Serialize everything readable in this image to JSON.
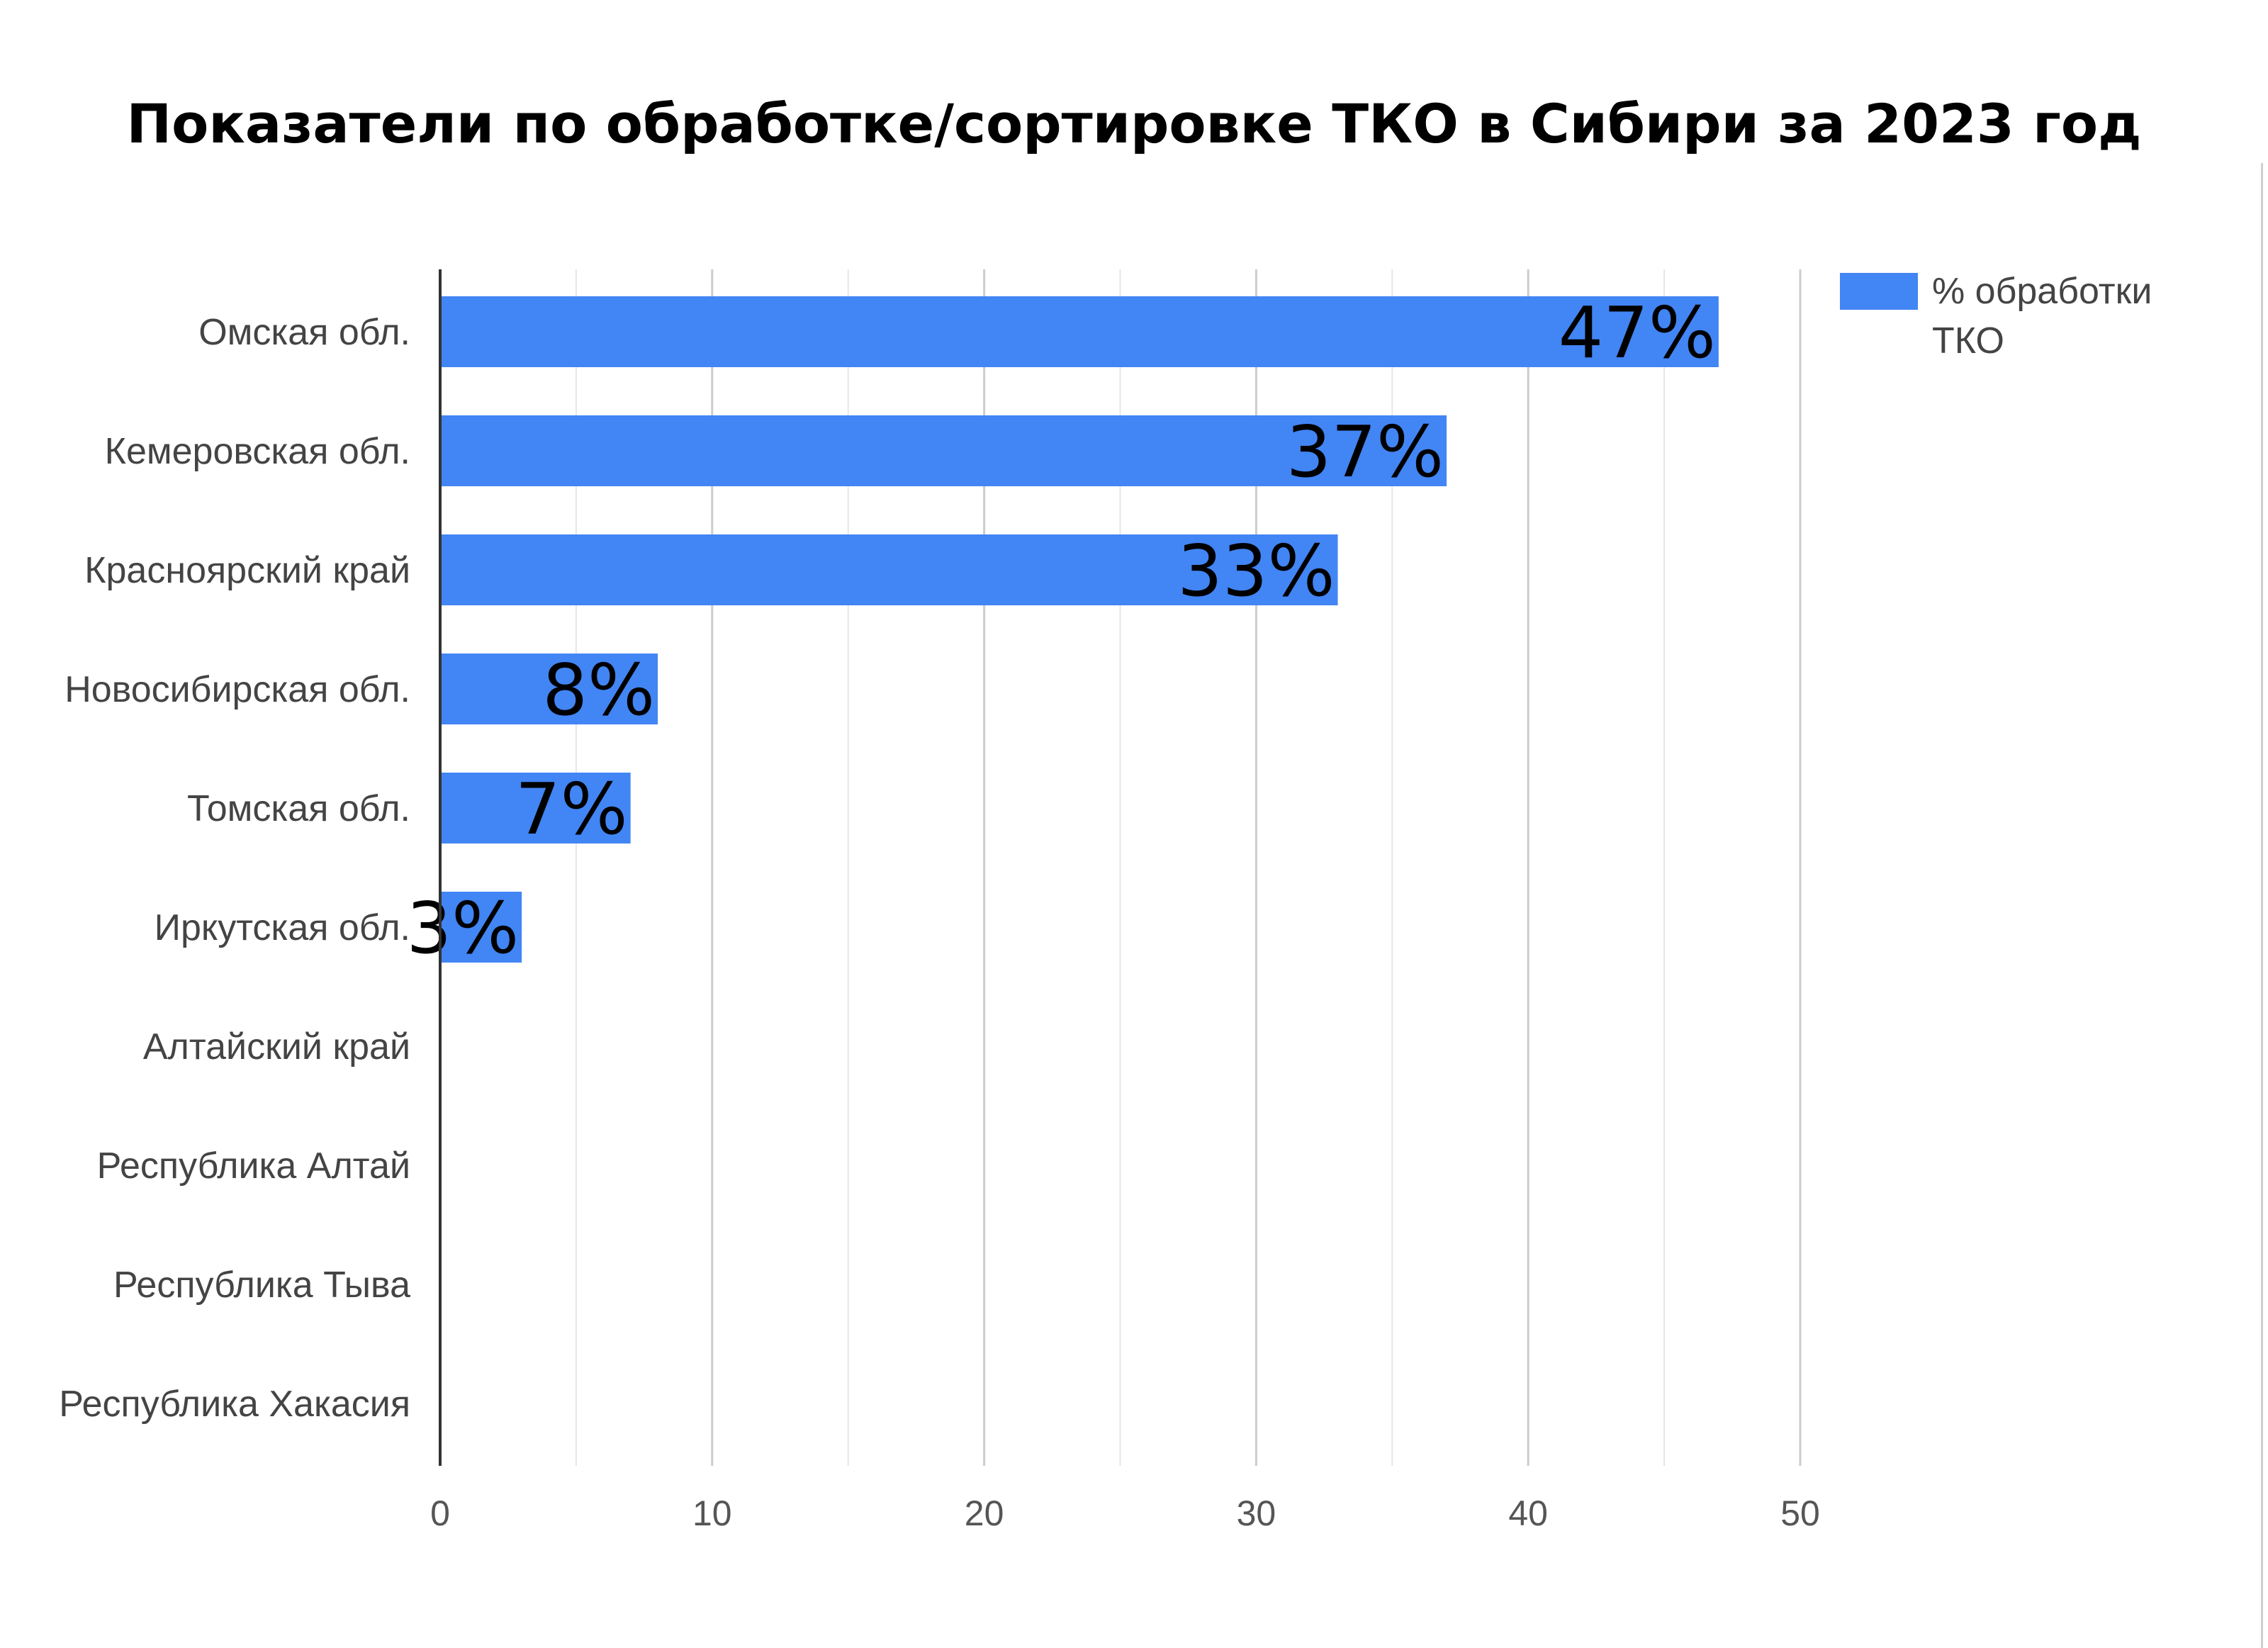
{
  "chart_data": {
    "type": "bar",
    "orientation": "horizontal",
    "title": "Показатели по обработке/сортировке ТКО в Сибири за 2023 год",
    "categories": [
      "Омская обл.",
      "Кемеровская обл.",
      "Красноярский край",
      "Новосибирская обл.",
      "Томская обл.",
      "Иркутская обл.",
      "Алтайский край",
      "Республика Алтай",
      "Республика Тыва",
      "Республика Хакасия"
    ],
    "series": [
      {
        "name": "% обработки ТКО",
        "color": "#4285f4",
        "values": [
          47,
          37,
          33,
          8,
          7,
          3,
          null,
          null,
          null,
          null
        ],
        "labels": [
          "47%",
          "37%",
          "33%",
          "8%",
          "7%",
          "3%",
          "",
          "",
          "",
          ""
        ]
      }
    ],
    "xlim": [
      0,
      50
    ],
    "xticks": [
      0,
      10,
      20,
      30,
      40,
      50
    ],
    "xlabel": "",
    "ylabel": "",
    "grid": true,
    "legend": {
      "position": "top-right",
      "lines": [
        "% обработки",
        "ТКО"
      ]
    }
  }
}
